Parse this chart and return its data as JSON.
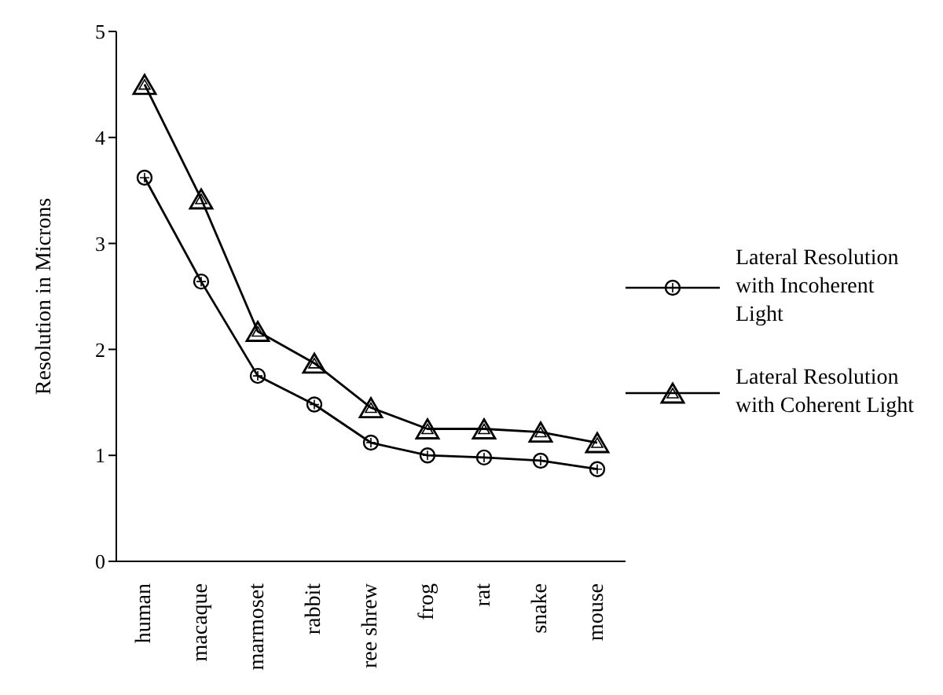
{
  "chart_data": {
    "type": "line",
    "ylabel": "Resolution in Microns",
    "categories": [
      "human",
      "macaque",
      "marmoset",
      "rabbit",
      "ree shrew",
      "frog",
      "rat",
      "snake",
      "mouse"
    ],
    "series": [
      {
        "name": "Lateral Resolution with Incoherent Light",
        "color": "#000000",
        "marker": "circle",
        "values": [
          3.62,
          2.64,
          1.75,
          1.48,
          1.12,
          1.0,
          0.98,
          0.95,
          0.87
        ]
      },
      {
        "name": "Lateral Resolution with Coherent Light",
        "color": "#000000",
        "marker": "triangle",
        "values": [
          4.5,
          3.42,
          2.17,
          1.87,
          1.45,
          1.25,
          1.25,
          1.22,
          1.12
        ]
      }
    ],
    "ylim": [
      0,
      5
    ],
    "yticks": [
      0,
      1,
      2,
      3,
      4,
      5
    ],
    "grid": false,
    "legend": "right",
    "line_style": "solid"
  }
}
